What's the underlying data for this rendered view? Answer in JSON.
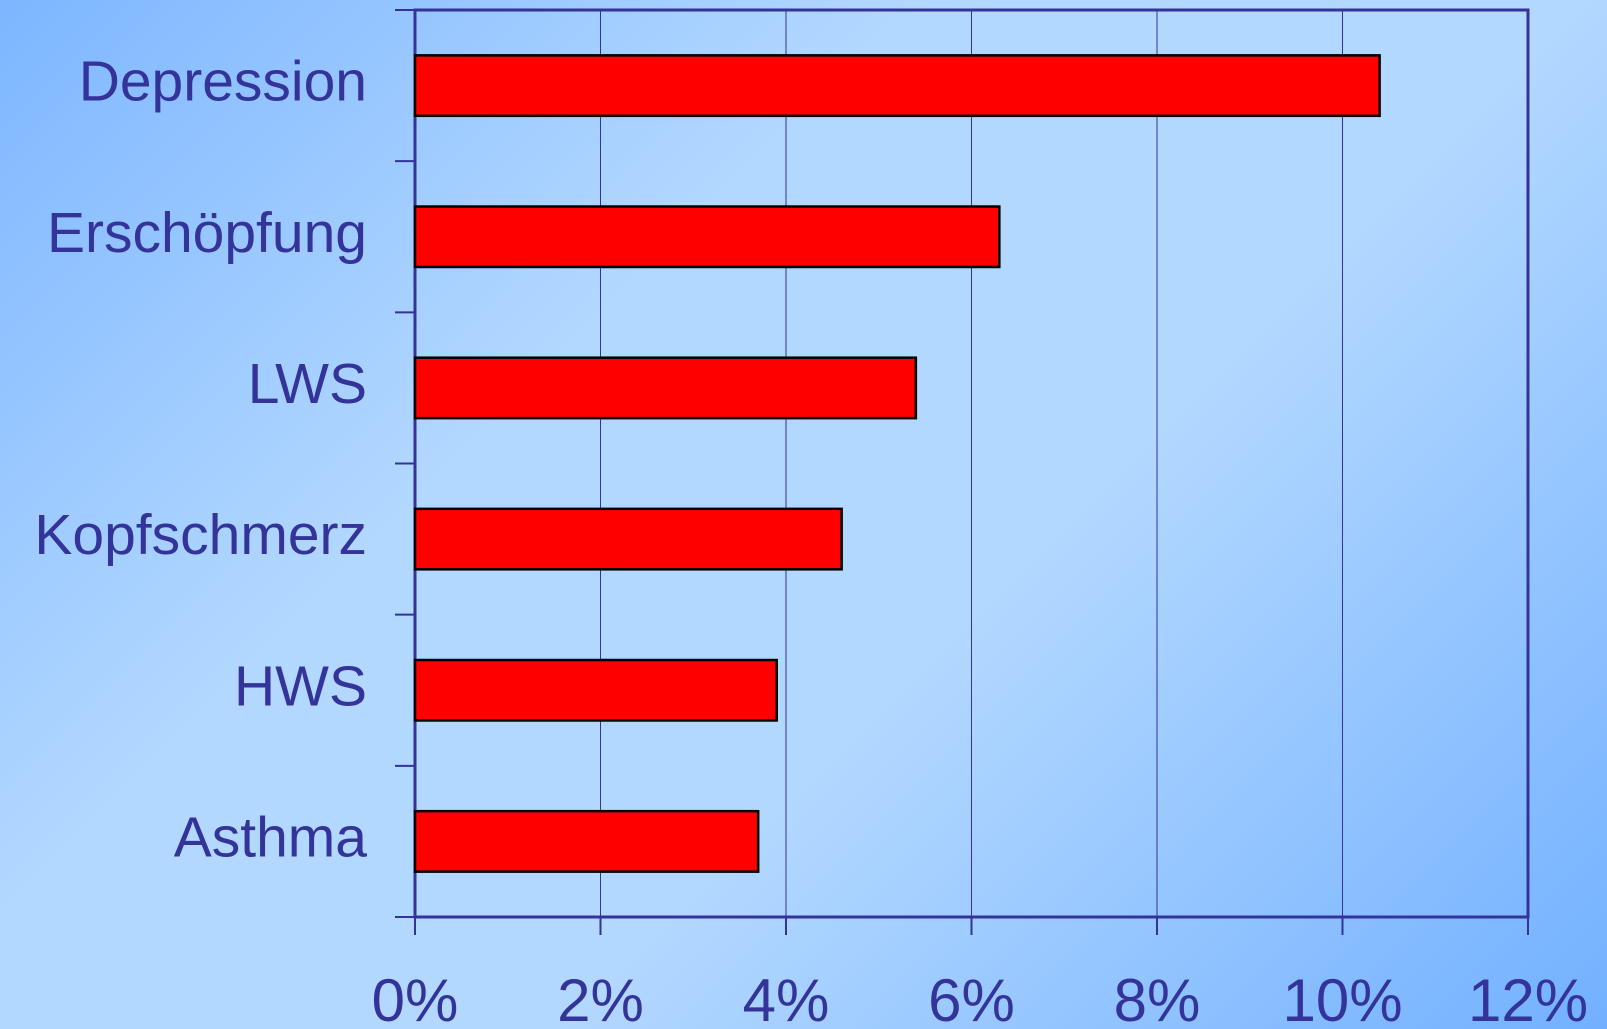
{
  "chart_data": {
    "type": "bar",
    "orientation": "horizontal",
    "categories": [
      "Depression",
      "Erschöpfung",
      "LWS",
      "Kopfschmerz",
      "HWS",
      "Asthma"
    ],
    "values": [
      10.4,
      6.3,
      5.4,
      4.6,
      3.9,
      3.7
    ],
    "color": "#ff0000",
    "xlim": [
      0,
      12
    ],
    "xticks": [
      {
        "value": 0,
        "label": "0%"
      },
      {
        "value": 2,
        "label": "2%"
      },
      {
        "value": 4,
        "label": "4%"
      },
      {
        "value": 6,
        "label": "6%"
      },
      {
        "value": 8,
        "label": "8%"
      },
      {
        "value": 10,
        "label": "10%"
      },
      {
        "value": 12,
        "label": "12%"
      }
    ],
    "grid": true
  }
}
